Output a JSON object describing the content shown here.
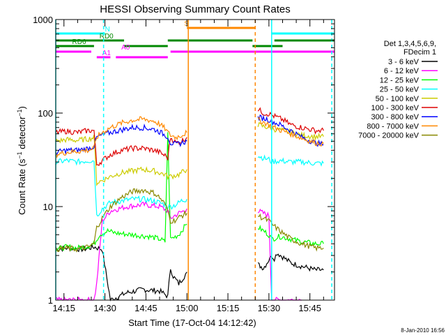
{
  "chart_data": {
    "type": "line",
    "title": "HESSI Observing Summary Count Rates",
    "xlabel": "Start Time (17-Oct-04 14:12:42)",
    "ylabel": "Count Rate (s⁻¹ detector⁻¹)",
    "ylabel_main": "Count Rate (s",
    "ylabel_mid": " detector",
    "ylabel_end": ")",
    "ylabel_sup": "−1",
    "yscale": "log",
    "xlim_min": [
      852,
      954
    ],
    "ylim": [
      1,
      1000
    ],
    "x_tick_labels": [
      "14:15",
      "14:30",
      "14:45",
      "15:00",
      "15:15",
      "15:30",
      "15:45"
    ],
    "x_ticks_min": [
      855,
      870,
      885,
      900,
      915,
      930,
      945
    ],
    "y_tick_labels": [
      "1",
      "10",
      "100",
      "1000"
    ],
    "y_ticks": [
      1,
      10,
      100,
      1000
    ],
    "legend_title": [
      "Det 1,3,4,5,6,9,",
      "FDecim 1"
    ],
    "legend_position": "right",
    "timestamp": "8-Jan-2010 16:56",
    "data_gap_min": [
      901,
      925
    ],
    "series": [
      {
        "name": "3 - 6 keV",
        "color": "#000000",
        "x": [
          852,
          856,
          862,
          866,
          869,
          872,
          878,
          884,
          890,
          893,
          894,
          895,
          897,
          899,
          900,
          926,
          928,
          930,
          931,
          932,
          933,
          935,
          938,
          942,
          947,
          950
        ],
        "y": [
          3.5,
          3.6,
          3.5,
          3.7,
          3.5,
          1,
          1.2,
          1.3,
          1.25,
          1.1,
          2.2,
          1.8,
          1.5,
          1.8,
          2.0,
          2.4,
          2.2,
          2.7,
          3.0,
          2.8,
          3.2,
          2.9,
          2.5,
          2.3,
          2.1,
          2.1
        ]
      },
      {
        "name": "6 - 12 keV",
        "color": "#ff00ff",
        "x": [
          852,
          856,
          862,
          866,
          867,
          869,
          872,
          878,
          884,
          890,
          893,
          894,
          897,
          899,
          900,
          926,
          928,
          930,
          931,
          934,
          938,
          942
        ],
        "y": [
          1,
          1,
          1,
          1,
          1.5,
          7,
          9,
          10,
          10.5,
          10,
          9,
          7.5,
          8.5,
          9,
          9.5,
          9,
          8.5,
          8,
          1,
          1,
          1,
          1
        ]
      },
      {
        "name": "12 - 25 keV",
        "color": "#00ff00",
        "x": [
          852,
          856,
          860,
          864,
          866,
          868,
          871,
          874,
          880,
          886,
          890,
          892,
          893,
          894,
          897,
          899,
          900,
          926,
          928,
          930,
          931,
          934,
          938,
          942,
          947,
          950
        ],
        "y": [
          3.5,
          3.7,
          3.6,
          3.8,
          4.0,
          5,
          5.5,
          5.2,
          5.0,
          4.8,
          4.5,
          4.2,
          60,
          4.5,
          5,
          6,
          6.5,
          6,
          5.5,
          5,
          4.5,
          4.8,
          4.5,
          4.2,
          4.0,
          4.0
        ]
      },
      {
        "name": "25 - 50 keV",
        "color": "#00ffff",
        "x": [
          852,
          856,
          860,
          864,
          866,
          867,
          869,
          872,
          876,
          880,
          884,
          888,
          890,
          892,
          893,
          894,
          896,
          898,
          900,
          926,
          928,
          930,
          931,
          934,
          938,
          942,
          947,
          950
        ],
        "y": [
          30,
          31,
          30,
          31,
          31,
          8,
          9.5,
          11,
          11.5,
          12,
          12,
          11.5,
          11,
          10.5,
          10,
          10,
          10.5,
          11.5,
          12,
          35,
          33,
          32,
          30,
          31,
          30,
          30,
          29,
          29
        ]
      },
      {
        "name": "50 - 100 keV",
        "color": "#cccc00",
        "x": [
          852,
          856,
          860,
          864,
          866,
          867,
          869,
          872,
          876,
          880,
          884,
          888,
          890,
          892,
          893,
          894,
          897,
          899,
          900,
          926,
          928,
          930,
          931,
          934,
          938,
          942,
          947,
          950
        ],
        "y": [
          50,
          52,
          51,
          53,
          55,
          18,
          19,
          21,
          23,
          24,
          25,
          24,
          23,
          22,
          21,
          21,
          22,
          24,
          25,
          75,
          72,
          70,
          68,
          66,
          62,
          58,
          56,
          56
        ]
      },
      {
        "name": "100 - 300 keV",
        "color": "#dd0000",
        "x": [
          852,
          856,
          860,
          864,
          866,
          867,
          869,
          872,
          876,
          880,
          884,
          888,
          890,
          892,
          893,
          894,
          896,
          898,
          900,
          926,
          928,
          930,
          931,
          933,
          935,
          938,
          942,
          947,
          950
        ],
        "y": [
          62,
          64,
          62,
          65,
          65,
          28,
          31,
          36,
          40,
          42,
          42,
          40,
          38,
          35,
          33,
          55,
          48,
          50,
          55,
          110,
          100,
          98,
          95,
          90,
          85,
          75,
          70,
          65,
          65
        ]
      },
      {
        "name": "300 - 800 keV",
        "color": "#0000ff",
        "x": [
          852,
          856,
          860,
          864,
          866,
          867,
          869,
          872,
          876,
          880,
          884,
          888,
          890,
          892,
          893,
          894,
          896,
          898,
          900,
          926,
          928,
          930,
          931,
          934,
          938,
          942,
          947,
          950
        ],
        "y": [
          38,
          40,
          40,
          42,
          44,
          55,
          58,
          62,
          66,
          70,
          70,
          67,
          63,
          58,
          56,
          48,
          46,
          48,
          50,
          90,
          88,
          85,
          82,
          75,
          65,
          55,
          48,
          46
        ]
      },
      {
        "name": "800 - 7000 keV",
        "color": "#ff8800",
        "x": [
          852,
          856,
          860,
          864,
          866,
          867,
          869,
          872,
          876,
          880,
          884,
          888,
          890,
          892,
          893,
          894,
          896,
          898,
          900,
          926,
          928,
          930,
          931,
          934,
          938,
          942,
          947,
          950
        ],
        "y": [
          36,
          38,
          39,
          40,
          42,
          55,
          62,
          70,
          78,
          84,
          86,
          82,
          76,
          68,
          62,
          58,
          55,
          58,
          62,
          85,
          80,
          75,
          72,
          66,
          60,
          54,
          48,
          47
        ]
      },
      {
        "name": "7000 - 20000 keV",
        "color": "#888800",
        "x": [
          852,
          856,
          860,
          864,
          866,
          867,
          869,
          872,
          876,
          880,
          884,
          888,
          890,
          892,
          893,
          894,
          896,
          898,
          900,
          926,
          928,
          930,
          931,
          934,
          938,
          942,
          947,
          950
        ],
        "y": [
          3.5,
          3.6,
          3.5,
          3.7,
          4,
          6,
          7.5,
          10,
          12.5,
          14.5,
          15,
          14,
          12.5,
          10.5,
          9,
          7,
          7.2,
          8,
          8.5,
          8,
          7.5,
          7,
          6.5,
          5.5,
          4.5,
          4,
          3.6,
          3.6
        ]
      }
    ],
    "orbit_bars": [
      {
        "label": "N",
        "color": "#00ffff",
        "label_min": 870,
        "segments_min": [
          [
            852,
            870
          ],
          [
            931,
            954
          ]
        ]
      },
      {
        "label": "RD0",
        "color": "#008800",
        "label_min": 868,
        "segments_min": [
          [
            852,
            877
          ],
          [
            893,
            924
          ],
          [
            932,
            954
          ]
        ]
      },
      {
        "label": "RD6",
        "color": "#008800",
        "label_min": 858,
        "segments_min": [
          [
            852,
            866
          ],
          [
            877,
            893
          ],
          [
            924,
            935
          ]
        ]
      },
      {
        "label": "A0",
        "color": "#ff00ff",
        "label_min": 876,
        "segments_min": [
          [
            852,
            865
          ],
          [
            894,
            954
          ]
        ]
      },
      {
        "label": "A1",
        "color": "#ff00ff",
        "label_min": 869,
        "segments_min": [
          [
            867,
            872
          ],
          [
            874,
            893
          ]
        ]
      },
      {
        "label": "S",
        "color": "#ff8800",
        "label_min": 899,
        "segments_min": [
          [
            900,
            925
          ]
        ]
      }
    ],
    "markers": [
      {
        "color": "#00ffff",
        "style": "solid",
        "x_min": 852
      },
      {
        "color": "#00ffff",
        "style": "dashed",
        "x_min": 869.5
      },
      {
        "color": "#ff8800",
        "style": "solid",
        "x_min": 900.5
      },
      {
        "color": "#ff8800",
        "style": "dashed",
        "x_min": 925
      },
      {
        "color": "#00ffff",
        "style": "solid",
        "x_min": 931
      },
      {
        "color": "#00ffff",
        "style": "dashed",
        "x_min": 953
      }
    ],
    "grid": false
  }
}
